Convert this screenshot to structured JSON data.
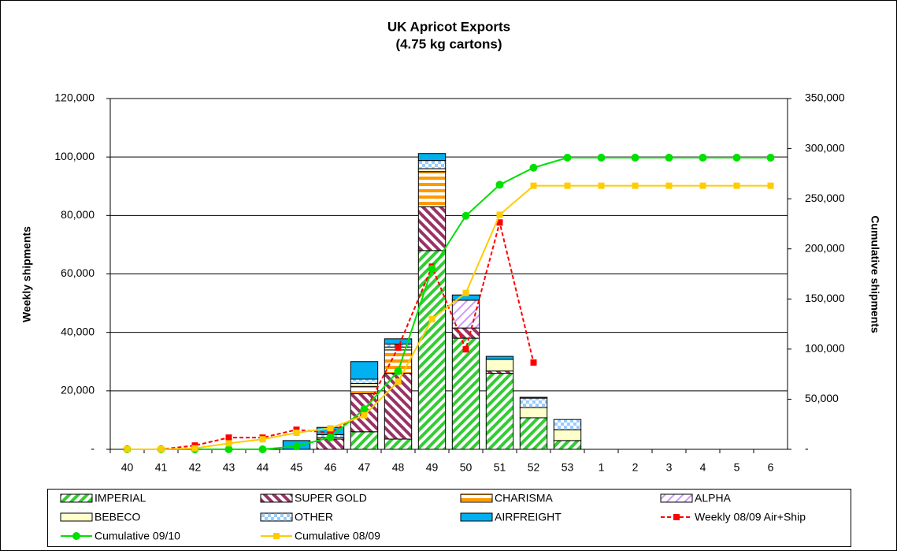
{
  "chart_data": {
    "type": "bar",
    "title": "UK Apricot Exports",
    "subtitle": "(4.75 kg cartons)",
    "y_label": "Weekly shipments",
    "y2_label": "Cumulative shipments",
    "categories": [
      "40",
      "41",
      "42",
      "43",
      "44",
      "45",
      "46",
      "47",
      "48",
      "49",
      "50",
      "51",
      "52",
      "53",
      "1",
      "2",
      "3",
      "4",
      "5",
      "6"
    ],
    "ylim": [
      0,
      120000
    ],
    "yticks": [
      {
        "value": 0,
        "label": "-"
      },
      {
        "value": 20000,
        "label": "20,000"
      },
      {
        "value": 40000,
        "label": "40,000"
      },
      {
        "value": 60000,
        "label": "60,000"
      },
      {
        "value": 80000,
        "label": "80,000"
      },
      {
        "value": 100000,
        "label": "100,000"
      },
      {
        "value": 120000,
        "label": "120,000"
      }
    ],
    "y2lim": [
      0,
      350000
    ],
    "y2ticks": [
      {
        "value": 0,
        "label": "-"
      },
      {
        "value": 50000,
        "label": "50,000"
      },
      {
        "value": 100000,
        "label": "100,000"
      },
      {
        "value": 150000,
        "label": "150,000"
      },
      {
        "value": 200000,
        "label": "200,000"
      },
      {
        "value": 250000,
        "label": "250,000"
      },
      {
        "value": 300000,
        "label": "300,000"
      },
      {
        "value": 350000,
        "label": "350,000"
      }
    ],
    "grid": true,
    "legend": "bottom",
    "series": [
      {
        "name": "IMPERIAL",
        "type": "bar",
        "pattern": "diagonal-up",
        "color": "#33cc33",
        "values": [
          0,
          0,
          0,
          0,
          0,
          0,
          0,
          6000,
          3500,
          68000,
          38000,
          26000,
          10800,
          3000,
          0,
          0,
          0,
          0,
          0,
          0
        ]
      },
      {
        "name": "SUPER GOLD",
        "type": "bar",
        "pattern": "diagonal-down",
        "color": "#993366",
        "values": [
          0,
          0,
          0,
          0,
          0,
          0,
          3500,
          13000,
          22500,
          15000,
          3500,
          800,
          0,
          0,
          0,
          0,
          0,
          0,
          0,
          0
        ]
      },
      {
        "name": "CHARISMA",
        "type": "bar",
        "pattern": "horizontal",
        "color": "#ff9900",
        "values": [
          0,
          0,
          0,
          0,
          0,
          0,
          0,
          2500,
          8000,
          12000,
          0,
          0,
          0,
          0,
          0,
          0,
          0,
          0,
          0,
          0
        ]
      },
      {
        "name": "ALPHA",
        "type": "bar",
        "pattern": "diagonal-thin",
        "color": "#cc99ff",
        "values": [
          0,
          0,
          0,
          0,
          0,
          0,
          0,
          0,
          0,
          0,
          9500,
          0,
          0,
          0,
          0,
          0,
          0,
          0,
          0,
          0
        ]
      },
      {
        "name": "BEBECO",
        "type": "bar",
        "pattern": "solid",
        "color": "#ffffcc",
        "values": [
          0,
          0,
          0,
          0,
          0,
          0,
          500,
          1000,
          1000,
          1000,
          0,
          4000,
          3500,
          3700,
          0,
          0,
          0,
          0,
          0,
          0
        ]
      },
      {
        "name": "OTHER",
        "type": "bar",
        "pattern": "checker",
        "color": "#99ccff",
        "values": [
          0,
          0,
          0,
          0,
          0,
          0,
          1000,
          1500,
          1000,
          2800,
          0,
          0,
          3200,
          3500,
          0,
          0,
          0,
          0,
          0,
          0
        ]
      },
      {
        "name": "AIRFREIGHT",
        "type": "bar",
        "pattern": "solid",
        "color": "#00b0f0",
        "values": [
          0,
          0,
          0,
          0,
          0,
          3000,
          2500,
          6000,
          1800,
          2400,
          1800,
          1000,
          300,
          0,
          0,
          0,
          0,
          0,
          0,
          0
        ]
      },
      {
        "name": "Weekly 08/09 Air+Ship",
        "type": "line",
        "dashed": true,
        "marker": "square",
        "color": "#ff0000",
        "values": [
          0,
          0,
          1300,
          4000,
          4000,
          6700,
          5700,
          12400,
          34800,
          62500,
          34200,
          77600,
          29700,
          null,
          null,
          null,
          null,
          null,
          null,
          null
        ]
      },
      {
        "name": "Cumulative 09/10",
        "type": "line",
        "axis": "y2",
        "marker": "circle",
        "color": "#00e000",
        "values": [
          0,
          0,
          0,
          0,
          0,
          3000,
          12000,
          40000,
          78000,
          180000,
          233000,
          264000,
          281000,
          291000,
          291000,
          291000,
          291000,
          291000,
          291000,
          291000
        ]
      },
      {
        "name": "Cumulative 08/09",
        "type": "line",
        "axis": "y2",
        "marker": "square",
        "color": "#ffcc00",
        "values": [
          0,
          0,
          1000,
          6000,
          10000,
          16500,
          21000,
          34000,
          67500,
          130000,
          156000,
          234000,
          263000,
          263000,
          263000,
          263000,
          263000,
          263000,
          263000,
          263000
        ]
      }
    ]
  }
}
